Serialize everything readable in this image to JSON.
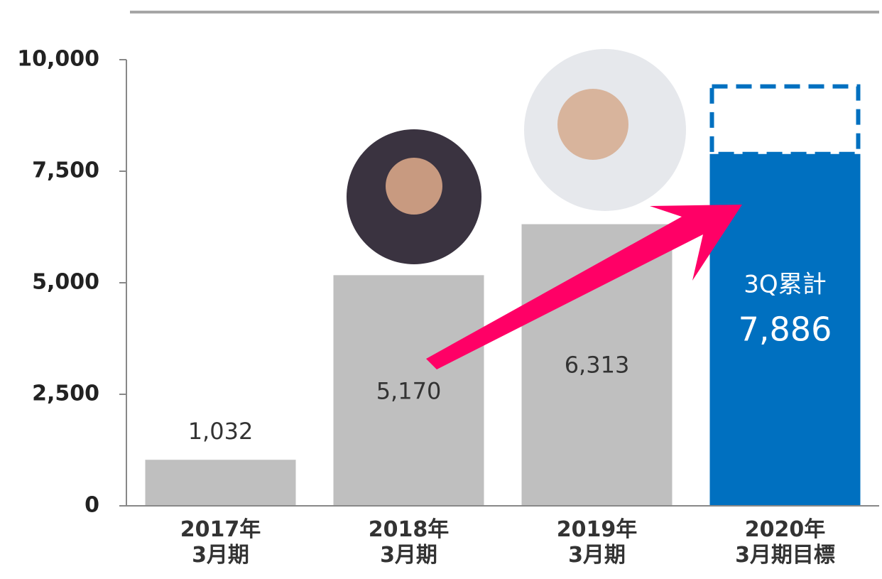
{
  "chart_data": {
    "type": "bar",
    "categories": [
      "2017年\n3月期",
      "2018年\n3月期",
      "2019年\n3月期",
      "2020年\n3月期目標"
    ],
    "values": [
      1032,
      5170,
      6313,
      7886
    ],
    "value_labels": [
      "1,032",
      "5,170",
      "6,313",
      "7,886"
    ],
    "colors": [
      "#bfbfbf",
      "#bfbfbf",
      "#bfbfbf",
      "#0070c0"
    ],
    "target": 9400,
    "annotation": "3Q累計",
    "ylim": [
      0,
      10000
    ],
    "yticks": [
      0,
      {
        "value": 2500,
        "label": "2,500"
      },
      {
        "value": 5000,
        "label": "5,000"
      },
      {
        "value": 7500,
        "label": "7,500"
      },
      {
        "value": 10000,
        "label": "10,000"
      }
    ]
  }
}
